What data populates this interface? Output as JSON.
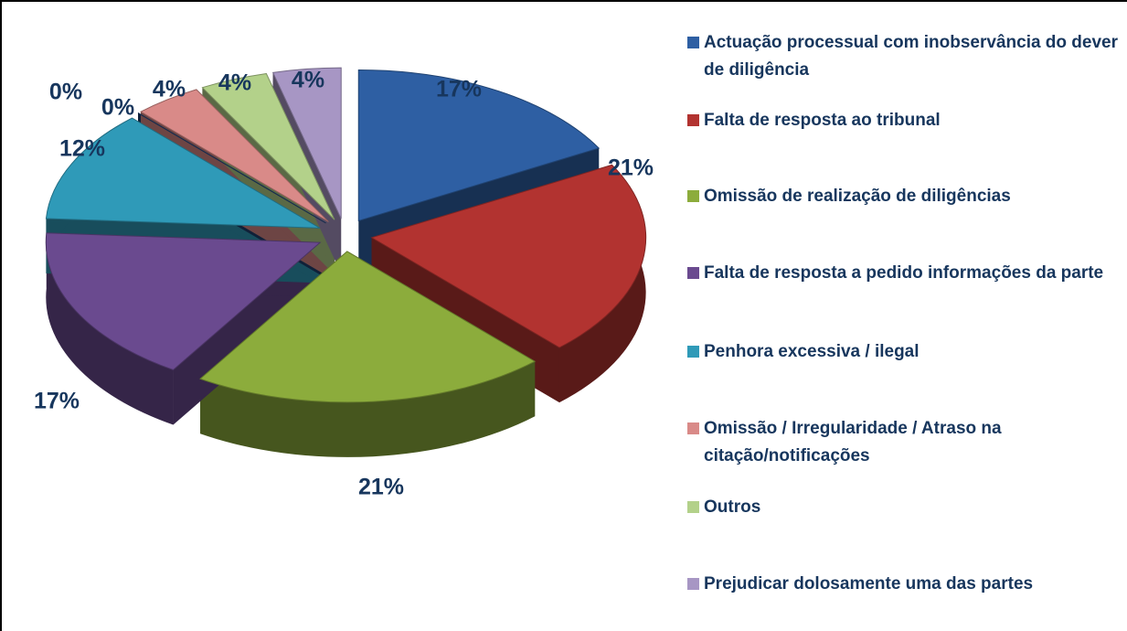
{
  "chart_data": {
    "type": "pie",
    "categories": [
      "Actuação processual com inobservância do dever de diligência",
      "Falta de resposta ao tribunal",
      "Omissão de realização de diligências",
      "Falta de resposta a pedido informações da parte",
      "Penhora excessiva / ilegal",
      null,
      null,
      "Omissão / Irregularidade / Atraso na citação/notificações",
      "Outros",
      "Prejudicar dolosamente uma das partes"
    ],
    "values": [
      17,
      21,
      21,
      17,
      12,
      0,
      0,
      4,
      4,
      4
    ],
    "value_labels": [
      "17%",
      "21%",
      "21%",
      "17%",
      "12%",
      "0%",
      "0%",
      "4%",
      "4%",
      "4%"
    ],
    "colors": [
      "#2e5fa3",
      "#b23330",
      "#8cac3c",
      "#6a4a8f",
      "#2f9ab8",
      "#1f3f6f",
      "#1f3f6f",
      "#d98a88",
      "#b3d18a",
      "#a796c4"
    ]
  }
}
